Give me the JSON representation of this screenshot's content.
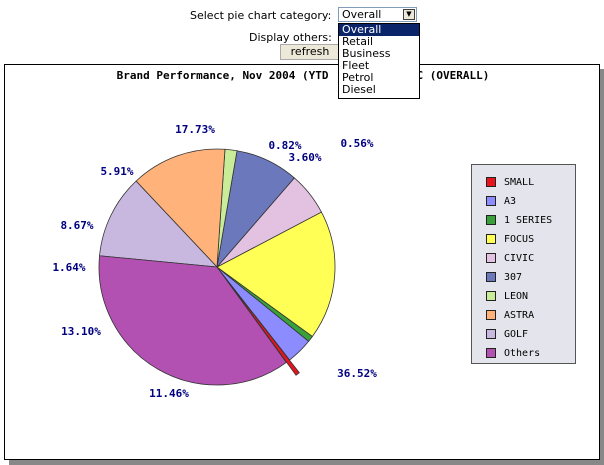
{
  "controls": {
    "category_label": "Select pie chart category:",
    "selected": "Overall",
    "options": [
      "Overall",
      "Retail",
      "Business",
      "Fleet",
      "Petrol",
      "Diesel"
    ],
    "display_others_label": "Display others:",
    "refresh_label": "refresh"
  },
  "chart_data": {
    "type": "pie",
    "title": "Brand Performance, Nov 2004 (YTD) - BFC (OVERALL)",
    "title_visible": "Brand Performance, Nov 2004 (YTD",
    "title_tail_visible": "C (OVERALL)",
    "slices": [
      {
        "name": "SMALL",
        "value": 0.56,
        "label": "0.56%",
        "color": "#e8141c"
      },
      {
        "name": "A3",
        "value": 3.6,
        "label": "3.60%",
        "color": "#8c8cff"
      },
      {
        "name": "1 SERIES",
        "value": 0.82,
        "label": "0.82%",
        "color": "#3aa03a"
      },
      {
        "name": "FOCUS",
        "value": 17.73,
        "label": "17.73%",
        "color": "#ffff55"
      },
      {
        "name": "CIVIC",
        "value": 5.91,
        "label": "5.91%",
        "color": "#e3c1e0"
      },
      {
        "name": "307",
        "value": 8.67,
        "label": "8.67%",
        "color": "#6b78bc"
      },
      {
        "name": "LEON",
        "value": 1.64,
        "label": "1.64%",
        "color": "#c8ec98"
      },
      {
        "name": "ASTRA",
        "value": 13.1,
        "label": "13.10%",
        "color": "#ffb27a"
      },
      {
        "name": "GOLF",
        "value": 11.46,
        "label": "11.46%",
        "color": "#c8b8e0"
      },
      {
        "name": "Others",
        "value": 36.52,
        "label": "36.52%",
        "color": "#b351b3"
      }
    ],
    "legend_placement": "right"
  }
}
